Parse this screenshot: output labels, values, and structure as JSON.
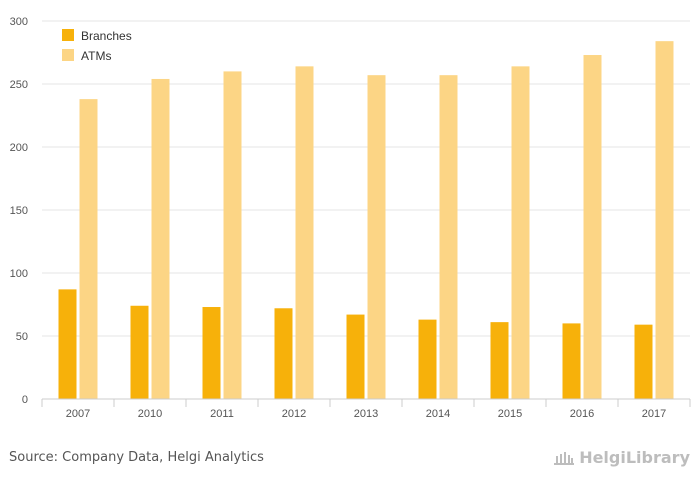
{
  "chart_data": {
    "type": "bar",
    "categories": [
      "2007",
      "2010",
      "2011",
      "2012",
      "2013",
      "2014",
      "2015",
      "2016",
      "2017"
    ],
    "series": [
      {
        "name": "Branches",
        "color": "#f7b10a",
        "values": [
          87,
          74,
          73,
          72,
          67,
          63,
          61,
          60,
          59
        ]
      },
      {
        "name": "ATMs",
        "color": "#fcd585",
        "values": [
          238,
          254,
          260,
          264,
          257,
          257,
          264,
          273,
          284
        ]
      }
    ],
    "yticks": [
      0,
      50,
      100,
      150,
      200,
      250,
      300
    ],
    "ylim": [
      0,
      300
    ],
    "grid": true,
    "legend_position": "top-left"
  },
  "footer": {
    "source": "Source: Company Data, Helgi Analytics",
    "logo_text": "HelgiLibrary"
  },
  "colors": {
    "grid": "#e6e6e6",
    "axis": "#cccccc",
    "text": "#555555"
  }
}
